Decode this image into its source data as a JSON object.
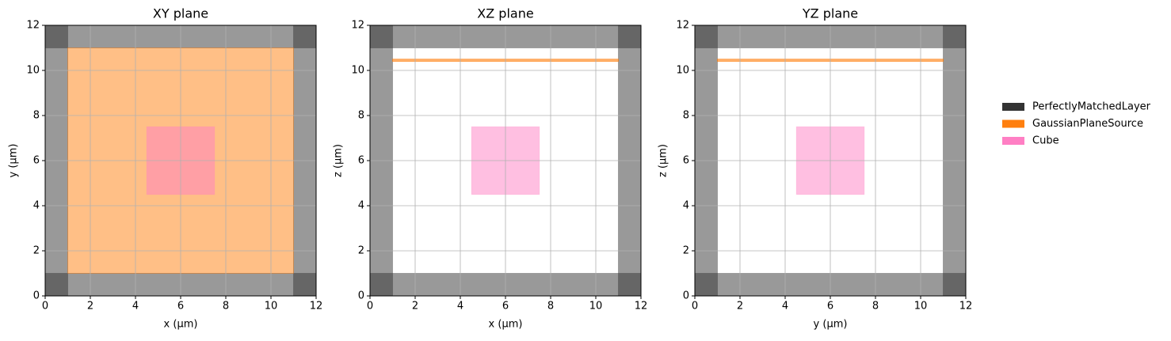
{
  "chart_data": [
    {
      "type": "rects",
      "title": "XY plane",
      "xlabel": "x (µm)",
      "ylabel": "y (µm)",
      "xlim": [
        0,
        12
      ],
      "ylim": [
        0,
        12
      ],
      "xticks": [
        0,
        2,
        4,
        6,
        8,
        10,
        12
      ],
      "yticks": [
        0,
        2,
        4,
        6,
        8,
        10,
        12
      ],
      "grid": true,
      "series": [
        {
          "rects": [
            [
              0,
              1,
              0,
              12
            ],
            [
              11,
              12,
              0,
              12
            ],
            [
              0,
              12,
              0,
              1
            ],
            [
              0,
              12,
              11,
              12
            ]
          ]
        },
        {
          "rects": [
            [
              1,
              11,
              1,
              11
            ]
          ]
        },
        {
          "rects": [
            [
              4.5,
              7.5,
              4.5,
              7.5
            ]
          ]
        }
      ]
    },
    {
      "type": "rects",
      "title": "XZ plane",
      "xlabel": "x (µm)",
      "ylabel": "z (µm)",
      "xlim": [
        0,
        12
      ],
      "ylim": [
        0,
        12
      ],
      "xticks": [
        0,
        2,
        4,
        6,
        8,
        10,
        12
      ],
      "yticks": [
        0,
        2,
        4,
        6,
        8,
        10,
        12
      ],
      "grid": true,
      "series": [
        {
          "rects": [
            [
              0,
              1,
              0,
              12
            ],
            [
              11,
              12,
              0,
              12
            ],
            [
              0,
              12,
              0,
              1
            ],
            [
              0,
              12,
              11,
              12
            ]
          ]
        },
        {
          "rects": [
            [
              1,
              11,
              10.4,
              10.5
            ]
          ]
        },
        {
          "rects": [
            [
              4.5,
              7.5,
              4.5,
              7.5
            ]
          ]
        }
      ]
    },
    {
      "type": "rects",
      "title": "YZ plane",
      "xlabel": "y (µm)",
      "ylabel": "z (µm)",
      "xlim": [
        0,
        12
      ],
      "ylim": [
        0,
        12
      ],
      "xticks": [
        0,
        2,
        4,
        6,
        8,
        10,
        12
      ],
      "yticks": [
        0,
        2,
        4,
        6,
        8,
        10,
        12
      ],
      "grid": true,
      "series": [
        {
          "rects": [
            [
              0,
              1,
              0,
              12
            ],
            [
              11,
              12,
              0,
              12
            ],
            [
              0,
              12,
              0,
              1
            ],
            [
              0,
              12,
              11,
              12
            ]
          ]
        },
        {
          "rects": [
            [
              1,
              11,
              10.4,
              10.5
            ]
          ]
        },
        {
          "rects": [
            [
              4.5,
              7.5,
              4.5,
              7.5
            ]
          ]
        }
      ]
    }
  ],
  "legend": [
    {
      "name": "PerfectlyMatchedLayer",
      "color": "#333333"
    },
    {
      "name": "GaussianPlaneSource",
      "color": "#ff7f0e"
    },
    {
      "name": "Cube",
      "color": "#ff7fc4"
    }
  ]
}
